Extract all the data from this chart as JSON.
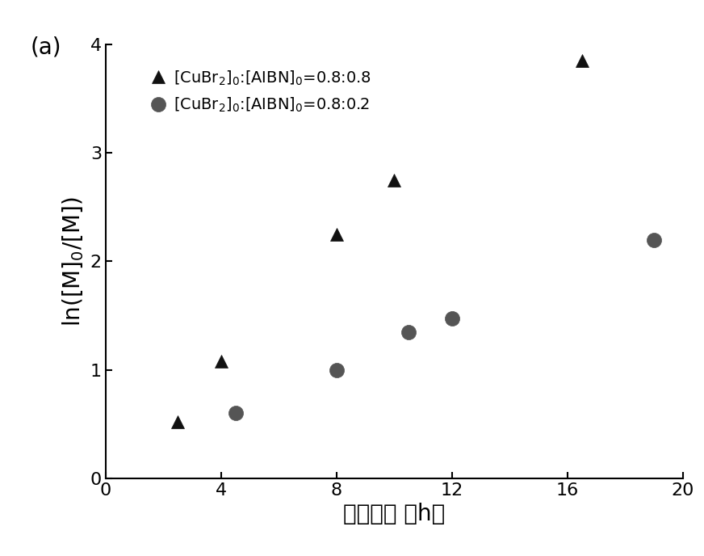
{
  "series1": {
    "label": "[CuBr$_2$]$_0$:[AIBN]$_0$=0.8:0.8",
    "x": [
      2.5,
      4.0,
      8.0,
      10.0,
      16.5
    ],
    "y": [
      0.52,
      1.08,
      2.25,
      2.75,
      3.85
    ],
    "marker": "^",
    "color": "#111111",
    "markersize": 12
  },
  "series2": {
    "label": "[CuBr$_2$]$_0$:[AIBN]$_0$=0.8:0.2",
    "x": [
      4.5,
      8.0,
      10.5,
      12.0,
      19.0
    ],
    "y": [
      0.6,
      1.0,
      1.35,
      1.47,
      2.2
    ],
    "marker": "o",
    "color": "#555555",
    "markersize": 13
  },
  "xlabel_chinese": "反应时间",
  "xlabel_h": " （h）",
  "ylabel": "ln([M]$_0$/[M])",
  "panel_label": "(a)",
  "xlim": [
    0,
    20
  ],
  "ylim": [
    0,
    4
  ],
  "xticks": [
    0,
    4,
    8,
    12,
    16,
    20
  ],
  "yticks": [
    0,
    1,
    2,
    3,
    4
  ],
  "label_fontsize": 20,
  "tick_fontsize": 16,
  "legend_fontsize": 14,
  "panel_fontsize": 20,
  "background_color": "#ffffff"
}
